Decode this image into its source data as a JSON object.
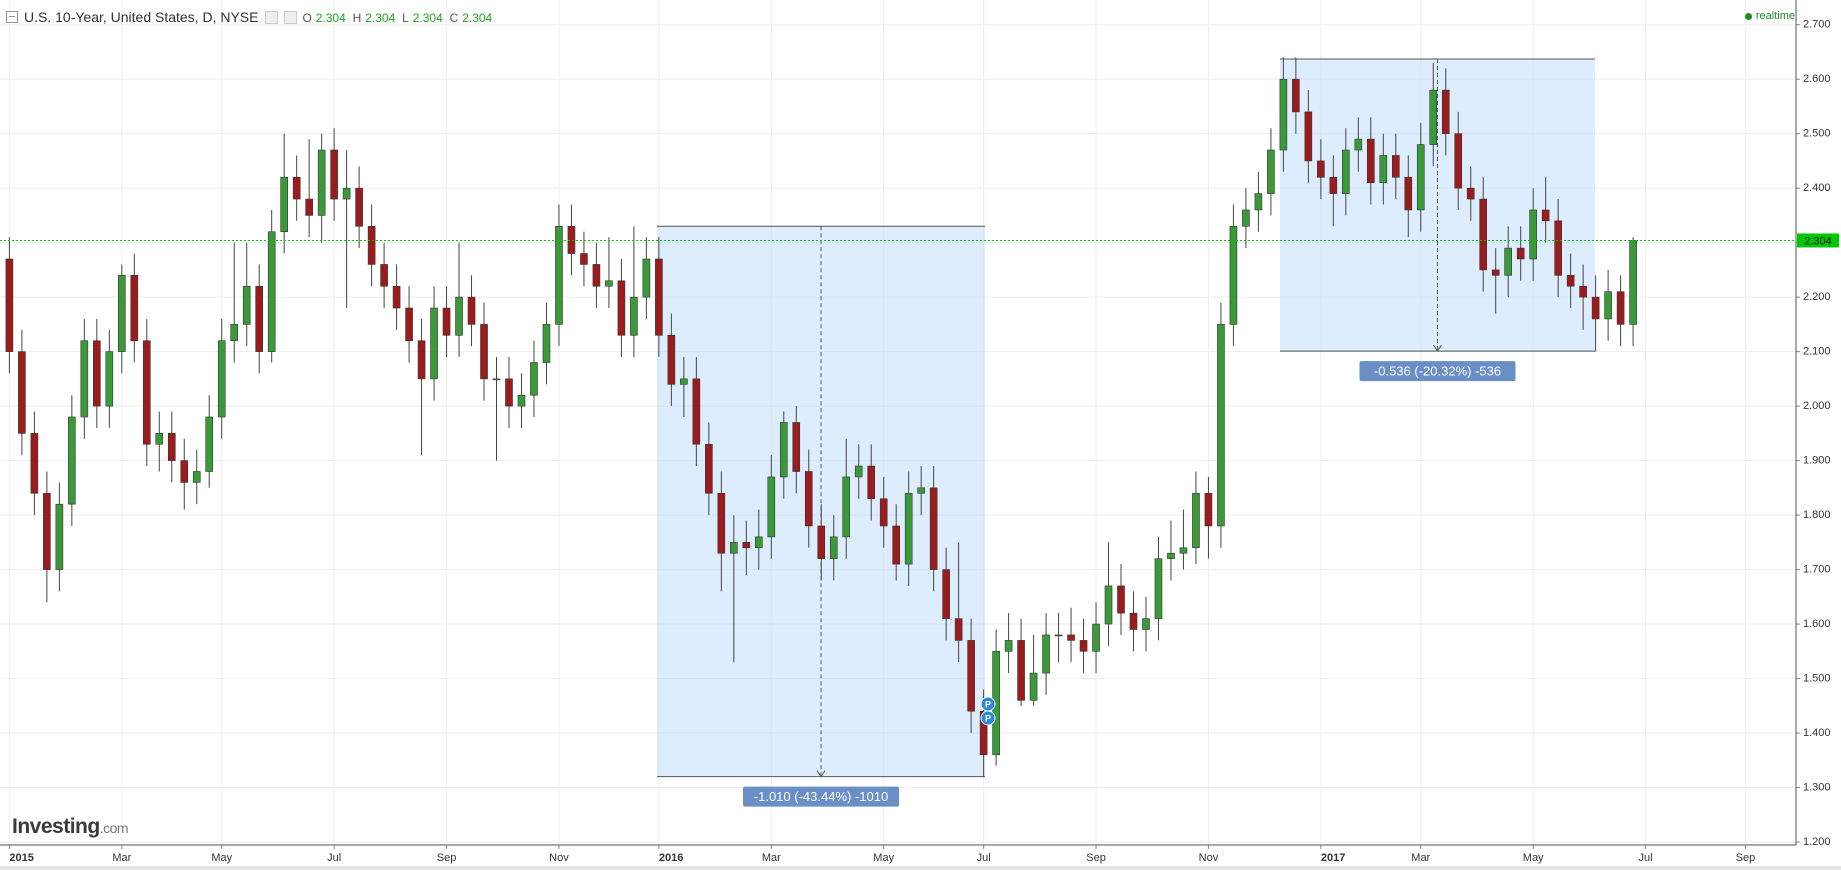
{
  "header": {
    "title": "U.S. 10-Year, United States, D, NYSE",
    "ohlc": [
      {
        "label": "O",
        "value": 2.304
      },
      {
        "label": "H",
        "value": 2.304
      },
      {
        "label": "L",
        "value": 2.304
      },
      {
        "label": "C",
        "value": 2.304
      }
    ],
    "status": "realtime"
  },
  "logo": {
    "brand": "Investing",
    "suffix": ".com"
  },
  "chart_data": {
    "type": "candlestick",
    "categories": [
      "2015",
      null,
      null,
      null,
      null,
      null,
      null,
      null,
      null,
      "Mar",
      null,
      null,
      null,
      null,
      null,
      null,
      null,
      "May",
      null,
      null,
      null,
      null,
      null,
      null,
      null,
      null,
      "Jul",
      null,
      null,
      null,
      null,
      null,
      null,
      null,
      null,
      "Sep",
      null,
      null,
      null,
      null,
      null,
      null,
      null,
      null,
      "Nov",
      null,
      null,
      null,
      null,
      null,
      null,
      null,
      "2016",
      null,
      null,
      null,
      null,
      null,
      null,
      null,
      null,
      "Mar",
      null,
      null,
      null,
      null,
      null,
      null,
      null,
      null,
      "May",
      null,
      null,
      null,
      null,
      null,
      null,
      null,
      "Jul",
      null,
      null,
      null,
      null,
      null,
      null,
      null,
      null,
      "Sep",
      null,
      null,
      null,
      null,
      null,
      null,
      null,
      null,
      "Nov",
      null,
      null,
      null,
      null,
      null,
      null,
      null,
      null,
      "2017",
      null,
      null,
      null,
      null,
      null,
      null,
      null,
      "Mar",
      null,
      null,
      null,
      null,
      null,
      null,
      null,
      null,
      "May",
      null,
      null,
      null,
      null,
      null,
      null,
      null,
      null,
      "Jul",
      null,
      null,
      null,
      null,
      null,
      null,
      null,
      "Sep",
      null,
      null,
      null
    ],
    "open": [
      2.27,
      2.1,
      1.95,
      1.84,
      1.7,
      1.82,
      1.98,
      2.12,
      2.0,
      2.1,
      2.24,
      2.12,
      1.93,
      1.95,
      1.9,
      1.86,
      1.88,
      1.98,
      2.12,
      2.15,
      2.22,
      2.1,
      2.32,
      2.42,
      2.38,
      2.35,
      2.47,
      2.38,
      2.4,
      2.33,
      2.26,
      2.22,
      2.18,
      2.12,
      2.05,
      2.18,
      2.13,
      2.2,
      2.15,
      2.05,
      2.05,
      2.0,
      2.02,
      2.08,
      2.15,
      2.33,
      2.28,
      2.26,
      2.22,
      2.23,
      2.13,
      2.2,
      2.27,
      2.13,
      2.04,
      2.05,
      1.93,
      1.84,
      1.73,
      1.75,
      1.74,
      1.76,
      1.87,
      1.97,
      1.88,
      1.78,
      1.72,
      1.76,
      1.87,
      1.89,
      1.83,
      1.78,
      1.71,
      1.84,
      1.85,
      1.7,
      1.61,
      1.57,
      1.44,
      1.36,
      1.55,
      1.57,
      1.46,
      1.51,
      1.58,
      1.58,
      1.57,
      1.55,
      1.6,
      1.67,
      1.62,
      1.59,
      1.61,
      1.72,
      1.73,
      1.74,
      1.84,
      1.78,
      2.15,
      2.33,
      2.36,
      2.39,
      2.47,
      2.6,
      2.54,
      2.45,
      2.42,
      2.39,
      2.47,
      2.49,
      2.41,
      2.46,
      2.42,
      2.36,
      2.48,
      2.58,
      2.5,
      2.4,
      2.38,
      2.25,
      2.24,
      2.29,
      2.27,
      2.36,
      2.34,
      2.24,
      2.22,
      2.2,
      2.16,
      2.21,
      2.15,
      null,
      null,
      null,
      null,
      null,
      null,
      null,
      null,
      null,
      null,
      null,
      null
    ],
    "high": [
      2.31,
      2.14,
      1.99,
      1.88,
      1.86,
      2.02,
      2.16,
      2.16,
      2.14,
      2.26,
      2.28,
      2.16,
      1.99,
      1.99,
      1.94,
      1.92,
      2.02,
      2.16,
      2.3,
      2.3,
      2.26,
      2.36,
      2.5,
      2.46,
      2.49,
      2.5,
      2.51,
      2.47,
      2.44,
      2.37,
      2.3,
      2.26,
      2.22,
      2.16,
      2.22,
      2.22,
      2.3,
      2.24,
      2.19,
      2.09,
      2.09,
      2.06,
      2.12,
      2.19,
      2.37,
      2.37,
      2.32,
      2.3,
      2.31,
      2.27,
      2.33,
      2.31,
      2.31,
      2.17,
      2.09,
      2.09,
      1.97,
      1.88,
      1.8,
      1.79,
      1.81,
      1.91,
      1.99,
      2.0,
      1.92,
      1.82,
      1.8,
      1.94,
      1.93,
      1.93,
      1.87,
      1.82,
      1.88,
      1.89,
      1.89,
      1.74,
      1.75,
      1.61,
      1.48,
      1.59,
      1.62,
      1.61,
      1.58,
      1.62,
      1.62,
      1.63,
      1.61,
      1.64,
      1.75,
      1.71,
      1.66,
      1.65,
      1.76,
      1.79,
      1.81,
      1.88,
      1.87,
      2.19,
      2.37,
      2.4,
      2.43,
      2.51,
      2.64,
      2.64,
      2.58,
      2.49,
      2.46,
      2.51,
      2.53,
      2.53,
      2.5,
      2.5,
      2.46,
      2.52,
      2.63,
      2.62,
      2.54,
      2.44,
      2.42,
      2.29,
      2.33,
      2.33,
      2.4,
      2.42,
      2.38,
      2.28,
      2.26,
      2.24,
      2.25,
      2.24,
      2.31,
      null,
      null,
      null,
      null,
      null,
      null,
      null,
      null,
      null,
      null,
      null,
      null
    ],
    "low": [
      2.06,
      1.91,
      1.8,
      1.64,
      1.66,
      1.78,
      1.94,
      1.96,
      1.96,
      2.06,
      2.08,
      1.89,
      1.88,
      1.86,
      1.81,
      1.82,
      1.85,
      1.94,
      2.08,
      2.11,
      2.06,
      2.08,
      2.28,
      2.34,
      2.31,
      2.3,
      2.34,
      2.18,
      2.29,
      2.22,
      2.18,
      2.14,
      2.08,
      1.91,
      2.01,
      2.09,
      2.09,
      2.11,
      2.01,
      1.9,
      1.96,
      1.96,
      1.98,
      2.04,
      2.11,
      2.24,
      2.22,
      2.18,
      2.18,
      2.09,
      2.09,
      2.16,
      2.09,
      2.0,
      1.98,
      1.89,
      1.8,
      1.66,
      1.53,
      1.69,
      1.7,
      1.72,
      1.83,
      1.84,
      1.74,
      1.68,
      1.68,
      1.72,
      1.83,
      1.79,
      1.74,
      1.68,
      1.67,
      1.8,
      1.66,
      1.57,
      1.53,
      1.4,
      1.32,
      1.34,
      1.51,
      1.45,
      1.45,
      1.47,
      1.53,
      1.53,
      1.51,
      1.51,
      1.56,
      1.58,
      1.55,
      1.55,
      1.57,
      1.68,
      1.7,
      1.71,
      1.72,
      1.74,
      2.11,
      2.29,
      2.32,
      2.35,
      2.43,
      2.5,
      2.41,
      2.38,
      2.33,
      2.35,
      2.43,
      2.37,
      2.37,
      2.38,
      2.31,
      2.32,
      2.44,
      2.46,
      2.36,
      2.34,
      2.21,
      2.17,
      2.2,
      2.23,
      2.23,
      2.3,
      2.2,
      2.18,
      2.14,
      2.1,
      2.12,
      2.11,
      2.11,
      null,
      null,
      null,
      null,
      null,
      null,
      null,
      null,
      null,
      null,
      null,
      null
    ],
    "close": [
      2.1,
      1.95,
      1.84,
      1.7,
      1.82,
      1.98,
      2.12,
      2.0,
      2.1,
      2.24,
      2.12,
      1.93,
      1.95,
      1.9,
      1.86,
      1.88,
      1.98,
      2.12,
      2.15,
      2.22,
      2.1,
      2.32,
      2.42,
      2.38,
      2.35,
      2.47,
      2.38,
      2.4,
      2.33,
      2.26,
      2.22,
      2.18,
      2.12,
      2.05,
      2.18,
      2.13,
      2.2,
      2.15,
      2.05,
      2.05,
      2.0,
      2.02,
      2.08,
      2.15,
      2.33,
      2.28,
      2.26,
      2.22,
      2.23,
      2.13,
      2.2,
      2.27,
      2.13,
      2.04,
      2.05,
      1.93,
      1.84,
      1.73,
      1.75,
      1.74,
      1.76,
      1.87,
      1.97,
      1.88,
      1.78,
      1.72,
      1.76,
      1.87,
      1.89,
      1.83,
      1.78,
      1.71,
      1.84,
      1.85,
      1.7,
      1.61,
      1.57,
      1.44,
      1.36,
      1.55,
      1.57,
      1.46,
      1.51,
      1.58,
      1.58,
      1.57,
      1.55,
      1.6,
      1.67,
      1.62,
      1.59,
      1.61,
      1.72,
      1.73,
      1.74,
      1.84,
      1.78,
      2.15,
      2.33,
      2.36,
      2.39,
      2.47,
      2.6,
      2.54,
      2.45,
      2.42,
      2.39,
      2.47,
      2.49,
      2.41,
      2.46,
      2.42,
      2.36,
      2.48,
      2.58,
      2.5,
      2.4,
      2.38,
      2.25,
      2.24,
      2.29,
      2.27,
      2.36,
      2.34,
      2.24,
      2.22,
      2.2,
      2.16,
      2.21,
      2.15,
      2.304,
      null,
      null,
      null,
      null,
      null,
      null,
      null,
      null,
      null,
      null,
      null,
      null
    ],
    "up_color": "#3a9a3a",
    "down_color": "#9b1c1c",
    "ylim": [
      1.2,
      2.7
    ],
    "yticks": [
      {
        "value": 1.2,
        "label": "1.200"
      },
      {
        "value": 1.3,
        "label": "1.300"
      },
      {
        "value": 1.4,
        "label": "1.400"
      },
      {
        "value": 1.5,
        "label": "1.500"
      },
      {
        "value": 1.6,
        "label": "1.600"
      },
      {
        "value": 1.7,
        "label": "1.700"
      },
      {
        "value": 1.8,
        "label": "1.800"
      },
      {
        "value": 1.9,
        "label": "1.900"
      },
      {
        "value": 2.0,
        "label": "2.000"
      },
      {
        "value": 2.1,
        "label": "2.100"
      },
      {
        "value": 2.2,
        "label": "2.200"
      },
      {
        "value": 2.3,
        "label": "2.300"
      },
      {
        "value": 2.4,
        "label": "2.400"
      },
      {
        "value": 2.5,
        "label": "2.500"
      },
      {
        "value": 2.6,
        "label": "2.600"
      },
      {
        "value": 2.7,
        "label": "2.700"
      }
    ],
    "grid": true,
    "price_line": {
      "value": 2.304,
      "color": "#00c800"
    },
    "annotations": [
      {
        "label": "-1.010 (-43.44%) -1010",
        "from": 2.33,
        "to": 1.32
      },
      {
        "label": "-0.536 (-20.32%) -536",
        "from": 2.637,
        "to": 2.101
      }
    ],
    "markers": [
      "P",
      "P"
    ]
  }
}
